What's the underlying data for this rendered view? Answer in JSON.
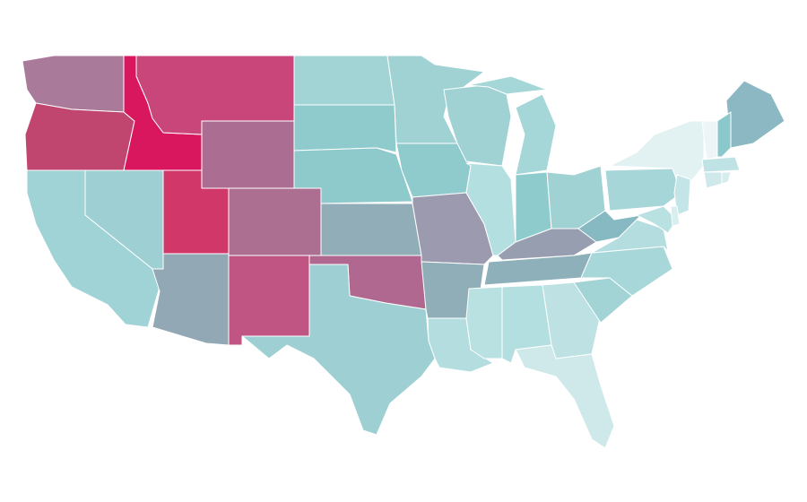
{
  "map": {
    "regions": [
      {
        "color": "#a97a99"
      },
      {
        "color": "#c0466f"
      },
      {
        "color": "#d9175e"
      },
      {
        "color": "#c8467a"
      },
      {
        "color": "#ab6e92"
      },
      {
        "color": "#d13769"
      },
      {
        "color": "#9ecfd2"
      },
      {
        "color": "#9fd3d6"
      },
      {
        "color": "#92a9b5"
      },
      {
        "color": "#ad6f91"
      },
      {
        "color": "#c05482"
      },
      {
        "color": "#a2d3d5"
      },
      {
        "color": "#8fcbcd"
      },
      {
        "color": "#8ec9cc"
      },
      {
        "color": "#91adb7"
      },
      {
        "color": "#b06890"
      },
      {
        "color": "#9ed0d3"
      },
      {
        "color": "#a0d2d4"
      },
      {
        "color": "#8fcbcd"
      },
      {
        "color": "#9c9aae"
      },
      {
        "color": "#8faeb7"
      },
      {
        "color": "#b3dddf"
      },
      {
        "color": "#a0d2d4"
      },
      {
        "color": "#b3dfe1"
      },
      {
        "color": "#a5d6d8"
      },
      {
        "color": "#8dcbcd"
      },
      {
        "color": "#a0d2d4"
      },
      {
        "color": "#969eb0"
      },
      {
        "color": "#8eb0ba"
      },
      {
        "color": "#b9e1e2"
      },
      {
        "color": "#b3dfe1"
      },
      {
        "color": "#bee2e3"
      },
      {
        "color": "#cfe9ea"
      },
      {
        "color": "#a2d3d5"
      },
      {
        "color": "#a8d7d9"
      },
      {
        "color": "#b4dddf"
      },
      {
        "color": "#86b9c2"
      },
      {
        "color": "#a7d6d8"
      },
      {
        "color": "#e2f2f3"
      },
      {
        "color": "#8bb8c2"
      },
      {
        "color": "#8bc8cb"
      },
      {
        "color": "#eef5f6"
      },
      {
        "color": "#bfe3e4"
      },
      {
        "color": "#cfe9ea"
      },
      {
        "color": "#d6ecee"
      },
      {
        "color": "#c4e5e7"
      },
      {
        "color": "#b9e1e2"
      },
      {
        "color": "#d9eeef"
      }
    ]
  }
}
